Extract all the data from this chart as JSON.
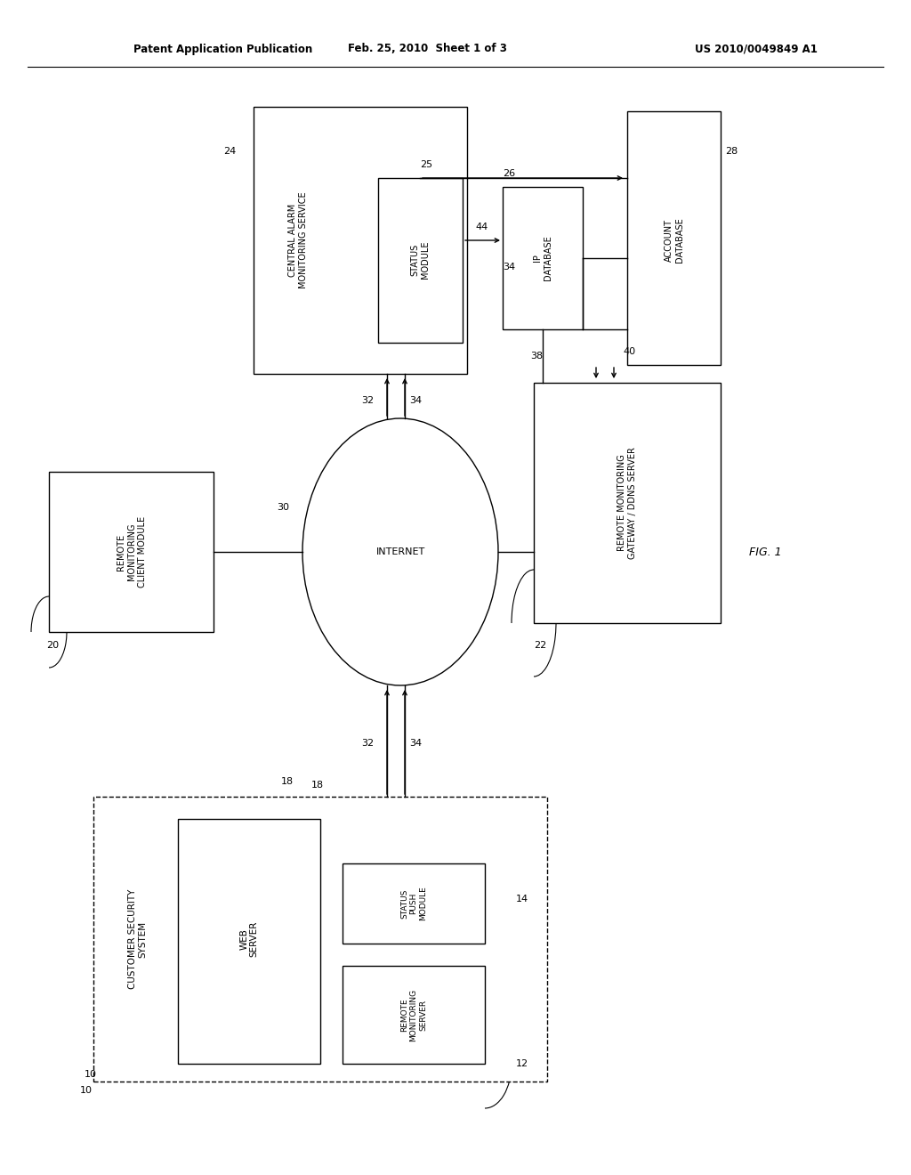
{
  "title_left": "Patent Application Publication",
  "title_mid": "Feb. 25, 2010  Sheet 1 of 3",
  "title_right": "US 2010/0049849 A1",
  "fig_label": "FIG. 1",
  "background": "#ffffff"
}
